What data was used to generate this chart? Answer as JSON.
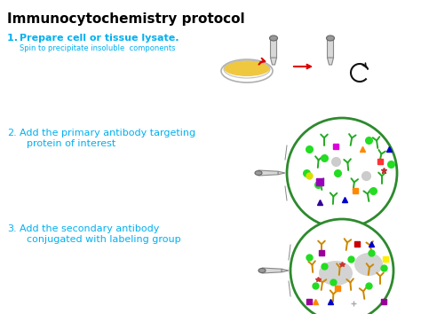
{
  "title": "Immunocytochemistry protocol",
  "title_color": "#000000",
  "title_fontsize": 11,
  "bg_color": "#ffffff",
  "step1_main": "Prepare cell or tissue lysate.",
  "step1_sub": "Spin to precipitate insoluble  components",
  "step_color": "#00b0f0",
  "circle_edge_color": "#2d8a2d",
  "fig_w": 4.74,
  "fig_h": 3.54,
  "dpi": 100
}
